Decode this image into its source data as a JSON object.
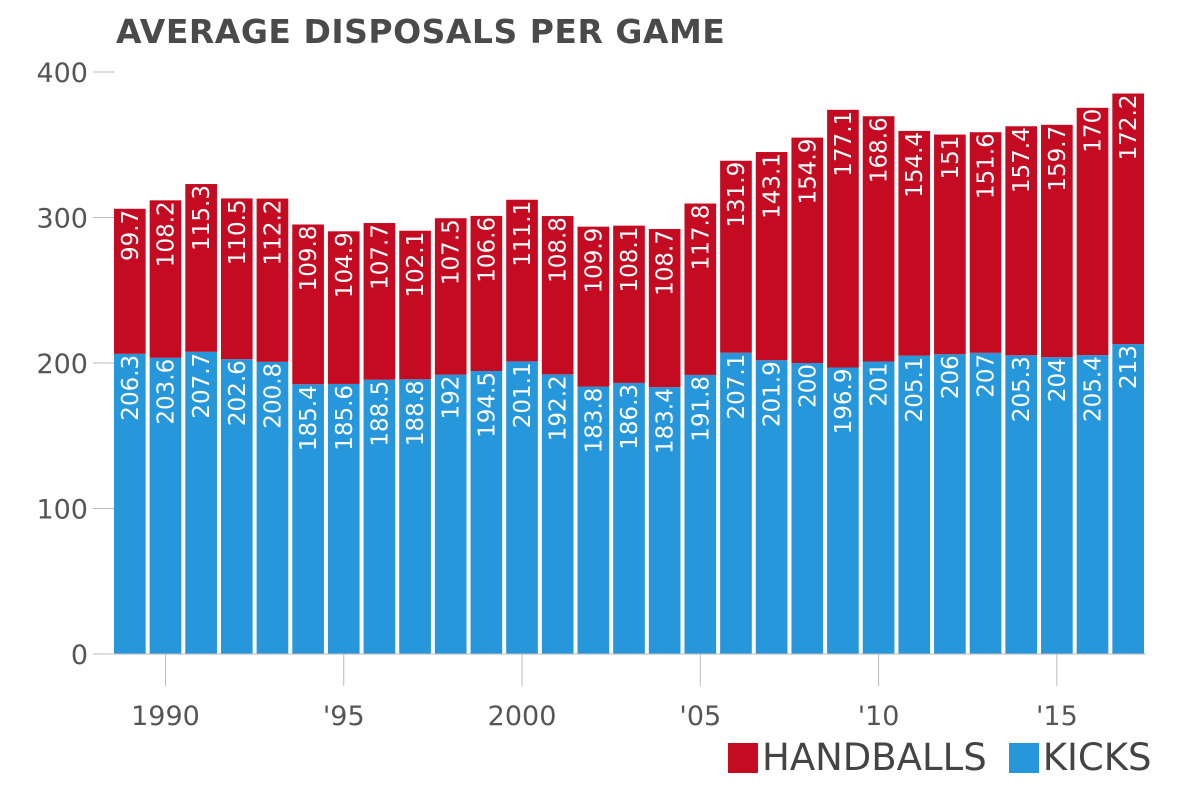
{
  "chart_data": {
    "type": "bar",
    "stacked": true,
    "title": "AVERAGE DISPOSALS PER GAME",
    "years": [
      1989,
      1990,
      1991,
      1992,
      1993,
      1994,
      1995,
      1996,
      1997,
      1998,
      1999,
      2000,
      2001,
      2002,
      2003,
      2004,
      2005,
      2006,
      2007,
      2008,
      2009,
      2010,
      2011,
      2012,
      2013,
      2014,
      2015,
      2016,
      2017
    ],
    "series": [
      {
        "name": "KICKS",
        "color": "#2697db",
        "values": [
          206.3,
          203.6,
          207.7,
          202.6,
          200.8,
          185.4,
          185.6,
          188.5,
          188.8,
          192,
          194.5,
          201.1,
          192.2,
          183.8,
          186.3,
          183.4,
          191.8,
          207.1,
          201.9,
          200,
          196.9,
          201,
          205.1,
          206,
          207,
          205.3,
          204,
          205.4,
          213
        ]
      },
      {
        "name": "HANDBALLS",
        "color": "#c40b21",
        "values": [
          99.7,
          108.2,
          115.3,
          110.5,
          112.2,
          109.8,
          104.9,
          107.7,
          102.1,
          107.5,
          106.6,
          111.1,
          108.8,
          109.9,
          108.1,
          108.7,
          117.8,
          131.9,
          143.1,
          154.9,
          177.1,
          168.6,
          154.4,
          151,
          151.6,
          157.4,
          159.7,
          170,
          172.2
        ]
      }
    ],
    "ylim": [
      0,
      400
    ],
    "yticks": [
      0,
      100,
      200,
      300,
      400
    ],
    "x_tick_labels": [
      {
        "year": 1990,
        "label": "1990"
      },
      {
        "year": 1995,
        "label": "'95"
      },
      {
        "year": 2000,
        "label": "2000"
      },
      {
        "year": 2005,
        "label": "'05"
      },
      {
        "year": 2010,
        "label": "'10"
      },
      {
        "year": 2015,
        "label": "'15"
      }
    ],
    "legend": {
      "placement": "bottom-right",
      "items": [
        "HANDBALLS",
        "KICKS"
      ]
    },
    "grid": false
  }
}
